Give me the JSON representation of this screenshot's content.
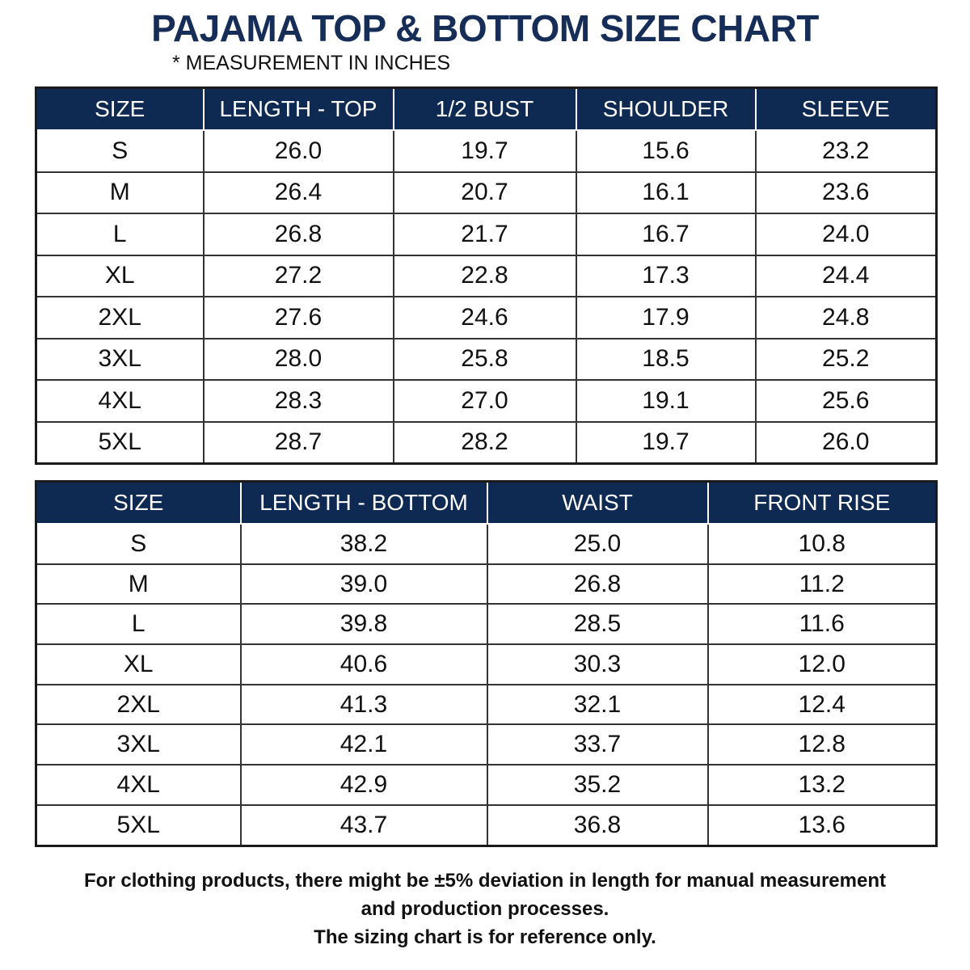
{
  "header": {
    "title": "PAJAMA TOP & BOTTOM SIZE CHART",
    "subtitle": "* MEASUREMENT IN INCHES"
  },
  "table_top": {
    "headers": [
      "SIZE",
      "LENGTH - TOP",
      "1/2 BUST",
      "SHOULDER",
      "SLEEVE"
    ],
    "rows": [
      [
        "S",
        "26.0",
        "19.7",
        "15.6",
        "23.2"
      ],
      [
        "M",
        "26.4",
        "20.7",
        "16.1",
        "23.6"
      ],
      [
        "L",
        "26.8",
        "21.7",
        "16.7",
        "24.0"
      ],
      [
        "XL",
        "27.2",
        "22.8",
        "17.3",
        "24.4"
      ],
      [
        "2XL",
        "27.6",
        "24.6",
        "17.9",
        "24.8"
      ],
      [
        "3XL",
        "28.0",
        "25.8",
        "18.5",
        "25.2"
      ],
      [
        "4XL",
        "28.3",
        "27.0",
        "19.1",
        "25.6"
      ],
      [
        "5XL",
        "28.7",
        "28.2",
        "19.7",
        "26.0"
      ]
    ]
  },
  "table_bottom": {
    "headers": [
      "SIZE",
      "LENGTH - BOTTOM",
      "WAIST",
      "FRONT RISE"
    ],
    "rows": [
      [
        "S",
        "38.2",
        "25.0",
        "10.8"
      ],
      [
        "M",
        "39.0",
        "26.8",
        "11.2"
      ],
      [
        "L",
        "39.8",
        "28.5",
        "11.6"
      ],
      [
        "XL",
        "40.6",
        "30.3",
        "12.0"
      ],
      [
        "2XL",
        "41.3",
        "32.1",
        "12.4"
      ],
      [
        "3XL",
        "42.1",
        "33.7",
        "12.8"
      ],
      [
        "4XL",
        "42.9",
        "35.2",
        "13.2"
      ],
      [
        "5XL",
        "43.7",
        "36.8",
        "13.6"
      ]
    ]
  },
  "footer": {
    "lines": [
      "For clothing products, there might be ±5% deviation in length for manual measurement",
      "and production processes.",
      "The sizing chart is for reference only."
    ]
  }
}
